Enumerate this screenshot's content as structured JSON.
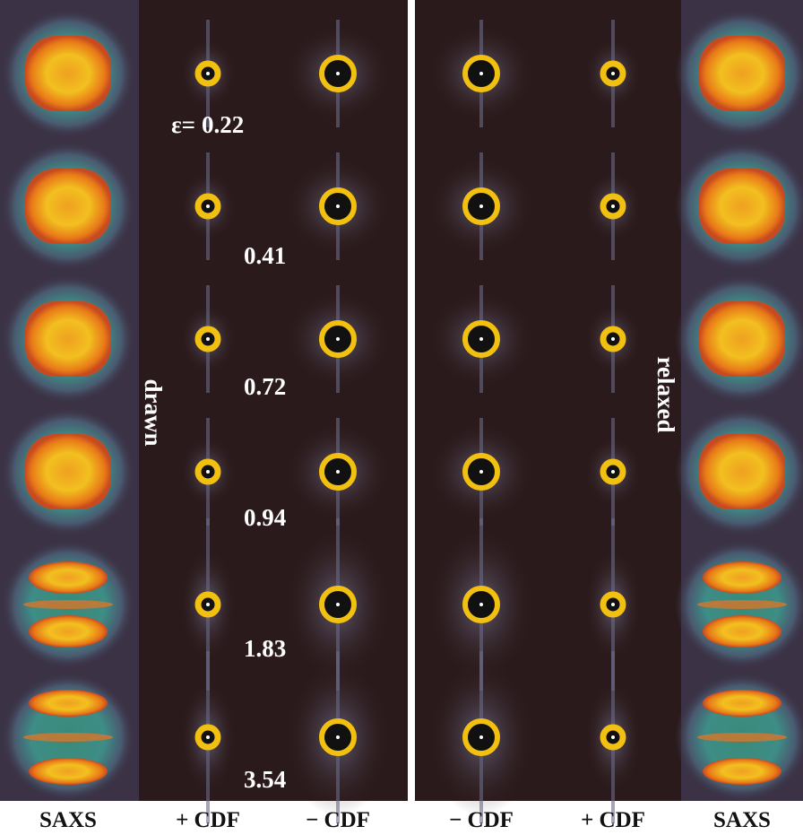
{
  "panels": [
    {
      "label": "drawn",
      "columns": [
        "SAXS",
        "+ CDF",
        "− CDF"
      ]
    },
    {
      "label": "relaxed",
      "columns": [
        "− CDF",
        "+ CDF",
        "SAXS"
      ]
    }
  ],
  "strain": {
    "symbol": "ε=",
    "values": [
      0.22,
      0.41,
      0.72,
      0.94,
      1.83,
      3.54
    ]
  }
}
